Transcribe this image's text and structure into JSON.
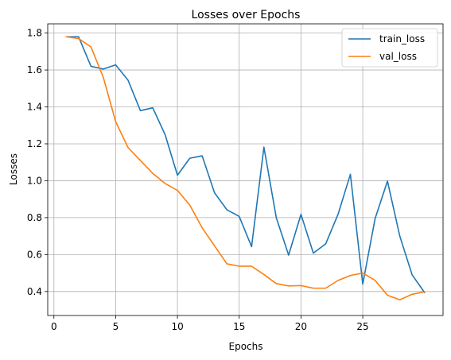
{
  "chart_data": {
    "type": "line",
    "title": "Losses over Epochs",
    "xlabel": "Epochs",
    "ylabel": "Losses",
    "xlim": [
      -0.5,
      31.5
    ],
    "ylim": [
      0.27,
      1.85
    ],
    "xticks": [
      0,
      5,
      10,
      15,
      20,
      25
    ],
    "yticks": [
      0.4,
      0.6,
      0.8,
      1.0,
      1.2,
      1.4,
      1.6,
      1.8
    ],
    "grid": true,
    "legend_position": "top-right",
    "x": [
      1,
      2,
      3,
      4,
      5,
      6,
      7,
      8,
      9,
      10,
      11,
      12,
      13,
      14,
      15,
      16,
      17,
      18,
      19,
      20,
      21,
      22,
      23,
      24,
      25,
      26,
      27,
      28,
      29,
      30
    ],
    "series": [
      {
        "name": "train_loss",
        "color": "#1f77b4",
        "values": [
          1.78,
          1.78,
          1.62,
          1.605,
          1.628,
          1.545,
          1.38,
          1.395,
          1.25,
          1.03,
          1.122,
          1.135,
          0.935,
          0.843,
          0.807,
          0.643,
          1.182,
          0.8,
          0.597,
          0.818,
          0.608,
          0.658,
          0.818,
          1.035,
          0.44,
          0.795,
          0.998,
          0.7,
          0.49,
          0.395
        ]
      },
      {
        "name": "val_loss",
        "color": "#ff7f0e",
        "values": [
          1.78,
          1.77,
          1.725,
          1.56,
          1.32,
          1.18,
          1.11,
          1.04,
          0.985,
          0.948,
          0.868,
          0.745,
          0.648,
          0.55,
          0.537,
          0.537,
          0.492,
          0.443,
          0.43,
          0.432,
          0.418,
          0.418,
          0.46,
          0.487,
          0.5,
          0.46,
          0.38,
          0.355,
          0.385,
          0.398
        ]
      }
    ]
  }
}
